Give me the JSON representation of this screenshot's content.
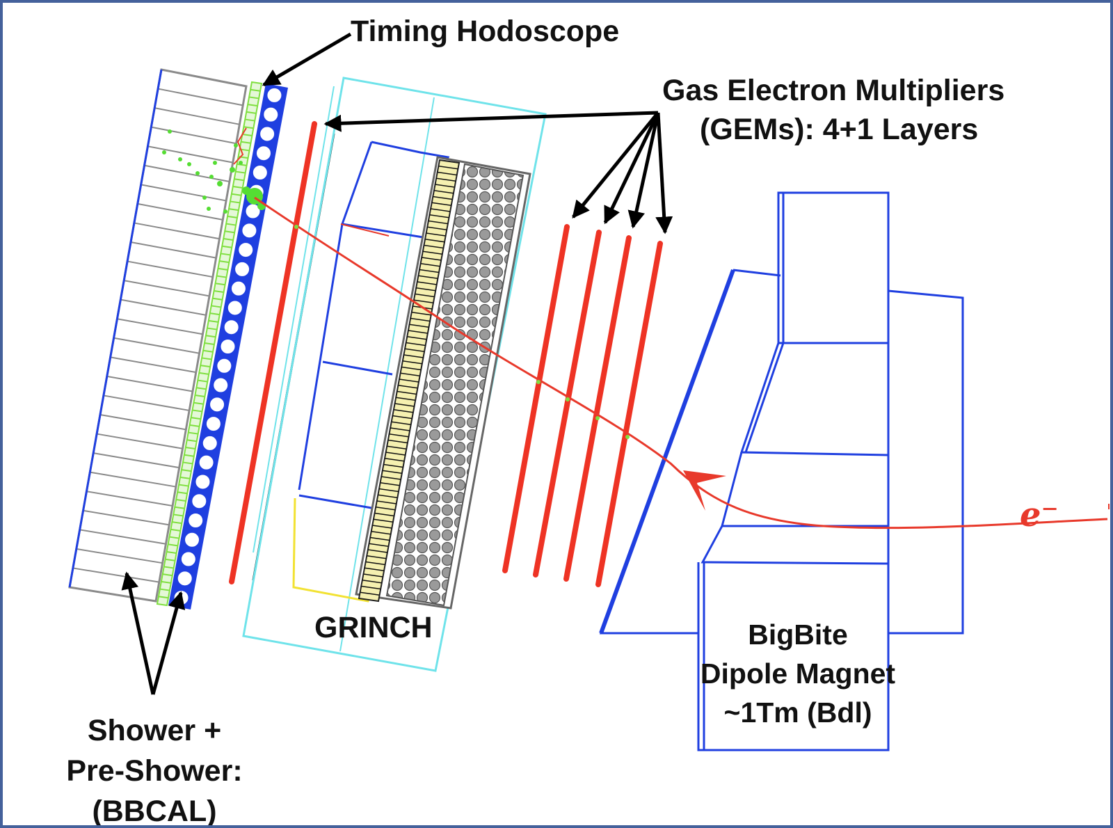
{
  "labels": {
    "timing_hodoscope": "Timing Hodoscope",
    "gems_line1": "Gas Electron Multipliers",
    "gems_line2": "(GEMs): 4+1 Layers",
    "grinch": "GRINCH",
    "bigbite_line1": "BigBite",
    "bigbite_line2": "Dipole Magnet",
    "bigbite_line3": "~1Tm (Bdl)",
    "bbcal_line1": "Shower +",
    "bbcal_line2": "Pre-Shower:",
    "bbcal_line3": "(BBCAL)",
    "particle": "e⁻"
  },
  "colors": {
    "frame": "#44619b",
    "magnet": "#1f3fe0",
    "gem": "#ee3324",
    "grinch_outline": "#6fe3ea",
    "track": "#e8392b",
    "hodoscope_dots": "#7fdf3f",
    "preshower": "#1f3fe0",
    "arrow": "#000000"
  }
}
